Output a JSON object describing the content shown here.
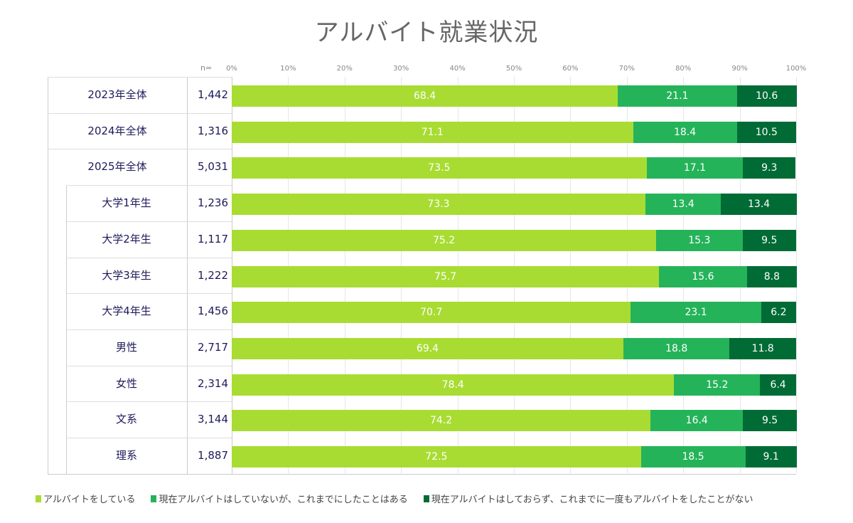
{
  "chart_data": {
    "type": "bar",
    "orientation": "horizontal-stacked-100",
    "title": "アルバイト就業状況",
    "n_label": "n=",
    "xlim": [
      0,
      100
    ],
    "xticks": [
      "0%",
      "10%",
      "20%",
      "30%",
      "40%",
      "50%",
      "60%",
      "70%",
      "80%",
      "90%",
      "100%"
    ],
    "grid": true,
    "legend_position": "bottom",
    "categories": [
      "2023年全体",
      "2024年全体",
      "2025年全体",
      "大学1年生",
      "大学2年生",
      "大学3年生",
      "大学4年生",
      "男性",
      "女性",
      "文系",
      "理系"
    ],
    "subgroup": [
      false,
      false,
      false,
      true,
      true,
      true,
      true,
      true,
      true,
      true,
      true
    ],
    "n": [
      "1,442",
      "1,316",
      "5,031",
      "1,236",
      "1,117",
      "1,222",
      "1,456",
      "2,717",
      "2,314",
      "3,144",
      "1,887"
    ],
    "series": [
      {
        "name": "アルバイトをしている",
        "color": "#a8dc33",
        "values": [
          68.4,
          71.1,
          73.5,
          73.3,
          75.2,
          75.7,
          70.7,
          69.4,
          78.4,
          74.2,
          72.5
        ]
      },
      {
        "name": "現在アルバイトはしていないが、これまでにしたことはある",
        "color": "#25b35a",
        "values": [
          21.1,
          18.4,
          17.1,
          13.4,
          15.3,
          15.6,
          23.1,
          18.8,
          15.2,
          16.4,
          18.5
        ]
      },
      {
        "name": "現在アルバイトはしておらず、これまでに一度もアルバイトをしたことがない",
        "color": "#006b35",
        "values": [
          10.6,
          10.5,
          9.3,
          13.4,
          9.5,
          8.8,
          6.2,
          11.8,
          6.4,
          9.5,
          9.1
        ]
      }
    ]
  }
}
